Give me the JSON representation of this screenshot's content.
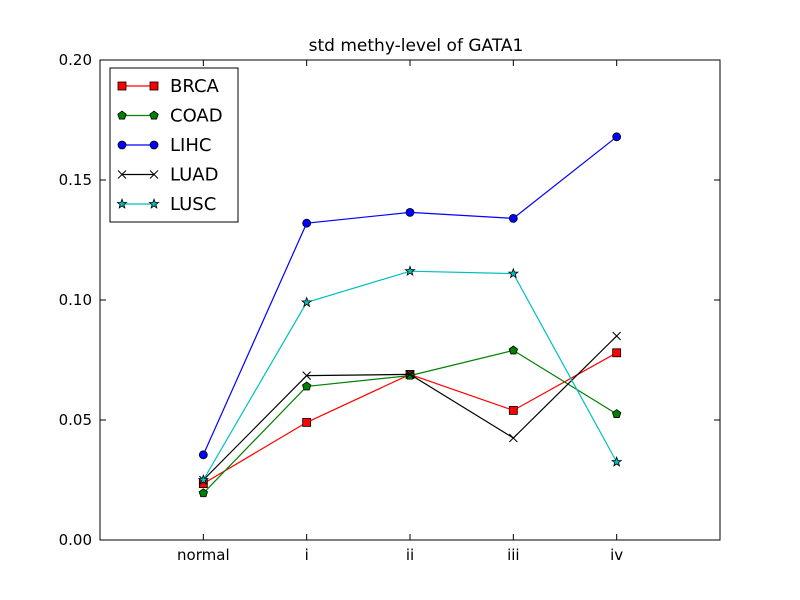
{
  "chart_data": {
    "type": "line",
    "title": "std methy-level of GATA1",
    "xlabel": "",
    "ylabel": "",
    "categories": [
      "normal",
      "i",
      "ii",
      "iii",
      "iv"
    ],
    "ylim": [
      0.0,
      0.2
    ],
    "yticks": [
      "0.00",
      "0.05",
      "0.10",
      "0.15",
      "0.20"
    ],
    "legend_position": "top-left",
    "grid": false,
    "series": [
      {
        "name": "BRCA",
        "color": "#ff0000",
        "marker": "square",
        "values": [
          0.0235,
          0.049,
          0.069,
          0.054,
          0.078
        ]
      },
      {
        "name": "COAD",
        "color": "#008000",
        "marker": "pentagon",
        "values": [
          0.0195,
          0.064,
          0.0685,
          0.079,
          0.0525
        ]
      },
      {
        "name": "LIHC",
        "color": "#0000ff",
        "marker": "circle",
        "values": [
          0.0355,
          0.132,
          0.1365,
          0.134,
          0.168
        ]
      },
      {
        "name": "LUAD",
        "color": "#000000",
        "marker": "x",
        "values": [
          0.025,
          0.0685,
          0.069,
          0.0425,
          0.085
        ]
      },
      {
        "name": "LUSC",
        "color": "#00bfbf",
        "marker": "star",
        "values": [
          0.025,
          0.099,
          0.112,
          0.111,
          0.0325
        ]
      }
    ]
  }
}
